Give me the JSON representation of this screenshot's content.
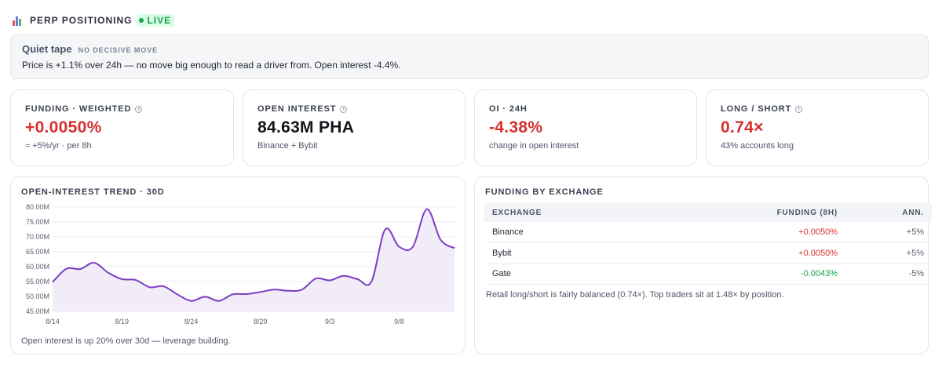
{
  "header": {
    "title": "PERP POSITIONING",
    "live_label": "LIVE",
    "icon": "bar-chart-icon"
  },
  "banner": {
    "heading": "Quiet tape",
    "tag": "NO DECISIVE MOVE",
    "text": "Price is +1.1% over 24h — no move big enough to read a driver from. Open interest -4.4%."
  },
  "cards": [
    {
      "label": "FUNDING · WEIGHTED",
      "info": true,
      "value": "+0.0050%",
      "sub": "≈ +5%/yr · per 8h"
    },
    {
      "label": "OPEN INTEREST",
      "info": true,
      "value": "84.63M PHA",
      "sub": "Binance + Bybit"
    },
    {
      "label": "OI · 24H",
      "info": false,
      "value": "-4.38%",
      "sub": "change in open interest"
    },
    {
      "label": "LONG / SHORT",
      "info": true,
      "value": "0.74×",
      "sub": "43% accounts long"
    }
  ],
  "oi_panel": {
    "title": "OPEN-INTEREST TREND · 30D",
    "note": "Open interest is up 20% over 30d — leverage building."
  },
  "funding_panel": {
    "title": "FUNDING BY EXCHANGE",
    "columns": [
      "EXCHANGE",
      "FUNDING (8H)",
      "ANN."
    ],
    "rows": [
      {
        "exchange": "Binance",
        "funding": "+0.0050%",
        "ann": "+5%"
      },
      {
        "exchange": "Bybit",
        "funding": "+0.0050%",
        "ann": "+5%"
      },
      {
        "exchange": "Gate",
        "funding": "-0.0043%",
        "ann": "-5%"
      }
    ],
    "note": "Retail long/short is fairly balanced (0.74×). Top traders sit at 1.48× by position."
  },
  "colors": {
    "accent": "#7b3fc4",
    "fill": "#ede7f6",
    "negative": "#d63030",
    "positive": "#16a34a"
  },
  "chart_data": {
    "type": "area",
    "title": "OPEN-INTEREST TREND · 30D",
    "xlabel": "",
    "ylabel": "",
    "ylim": [
      45,
      80
    ],
    "yticks": [
      "80.00M",
      "75.00M",
      "70.00M",
      "65.00M",
      "60.00M",
      "55.00M",
      "50.00M",
      "45.00M"
    ],
    "xticks": [
      "8/14",
      "8/19",
      "8/24",
      "8/29",
      "9/3",
      "9/8"
    ],
    "x": [
      "8/14",
      "8/15",
      "8/16",
      "8/17",
      "8/18",
      "8/19",
      "8/20",
      "8/21",
      "8/22",
      "8/23",
      "8/24",
      "8/25",
      "8/26",
      "8/27",
      "8/28",
      "8/29",
      "8/30",
      "8/31",
      "9/1",
      "9/2",
      "9/3",
      "9/4",
      "9/5",
      "9/6",
      "9/7",
      "9/8",
      "9/9",
      "9/10",
      "9/11",
      "9/12"
    ],
    "series": [
      {
        "values": [
          54.8,
          59.3,
          59.2,
          61.3,
          58.0,
          55.8,
          55.5,
          53.1,
          53.4,
          50.7,
          48.5,
          49.9,
          48.5,
          50.7,
          50.8,
          51.5,
          52.3,
          51.9,
          52.3,
          56.0,
          55.4,
          56.9,
          55.8,
          54.9,
          72.5,
          66.7,
          66.7,
          79.3,
          69.0,
          66.2
        ]
      }
    ],
    "grid": true,
    "legend": "none"
  }
}
